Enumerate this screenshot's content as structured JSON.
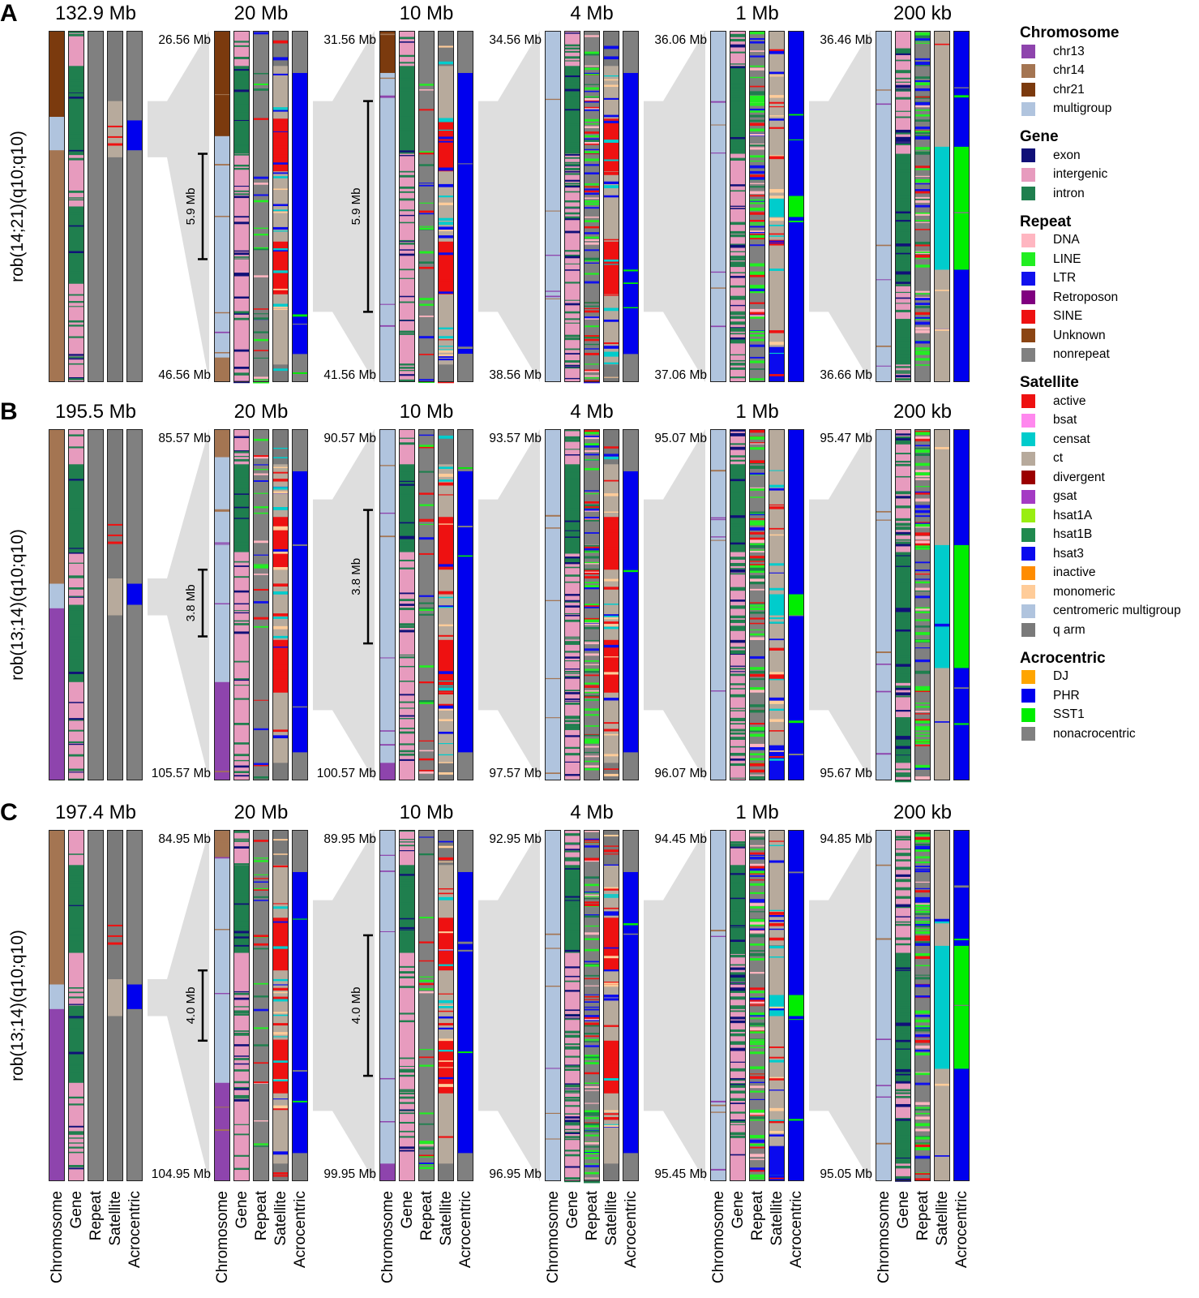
{
  "colors": {
    "chr13": "#8e44ad",
    "chr14": "#a47552",
    "chr21": "#7b3a0e",
    "multigroup": "#b0c4de",
    "exon": "#101078",
    "intergenic": "#e79bbe",
    "intron": "#1f7f4e",
    "DNA": "#ffb6c1",
    "LINE": "#22ee22",
    "LTR": "#1010ee",
    "Retroposon": "#800080",
    "SINE": "#ee1111",
    "Unknown": "#8b4513",
    "nonrepeat": "#808080",
    "active": "#ee1111",
    "bsat": "#ff88ee",
    "censat": "#00cccc",
    "ct": "#b7aa9c",
    "divergent": "#9b0000",
    "gsat": "#a43ac4",
    "hsat1A": "#99ee11",
    "hsat1B": "#1f8a4e",
    "hsat3": "#0a0aee",
    "inactive": "#ff8c00",
    "monomeric": "#ffcc99",
    "centromeric multigroup": "#b0c4de",
    "q arm": "#7a7a7a",
    "DJ": "#ffa500",
    "PHR": "#0000ee",
    "SST1": "#00ee00",
    "nonacrocentric": "#808080"
  },
  "legend": [
    {
      "title": "Chromosome",
      "items": [
        "chr13",
        "chr14",
        "chr21",
        "multigroup"
      ]
    },
    {
      "title": "Gene",
      "items": [
        "exon",
        "intergenic",
        "intron"
      ]
    },
    {
      "title": "Repeat",
      "items": [
        "DNA",
        "LINE",
        "LTR",
        "Retroposon",
        "SINE",
        "Unknown",
        "nonrepeat"
      ]
    },
    {
      "title": "Satellite",
      "items": [
        "active",
        "bsat",
        "censat",
        "ct",
        "divergent",
        "gsat",
        "hsat1A",
        "hsat1B",
        "hsat3",
        "inactive",
        "monomeric",
        "centromeric multigroup",
        "q arm"
      ]
    },
    {
      "title": "Acrocentric",
      "items": [
        "DJ",
        "PHR",
        "SST1",
        "nonacrocentric"
      ]
    }
  ],
  "track_labels": [
    "Chromosome",
    "Gene",
    "Repeat",
    "Satellite",
    "Acrocentric"
  ],
  "panels": [
    {
      "letter": "A",
      "label": "rob(14;21)(q10;q10)",
      "views": [
        {
          "title": "132.9 Mb"
        },
        {
          "title": "20 Mb",
          "top": "26.56 Mb",
          "bottom": "46.56 Mb",
          "scale": "5.9 Mb",
          "sfrac": [
            0.35,
            0.65
          ]
        },
        {
          "title": "10 Mb",
          "top": "31.56 Mb",
          "bottom": "41.56 Mb",
          "scale": "5.9 Mb",
          "sfrac": [
            0.2,
            0.8
          ]
        },
        {
          "title": "4 Mb",
          "top": "34.56 Mb",
          "bottom": "38.56 Mb"
        },
        {
          "title": "1 Mb",
          "top": "36.06 Mb",
          "bottom": "37.06 Mb"
        },
        {
          "title": "200 kb",
          "top": "36.46 Mb",
          "bottom": "36.66 Mb"
        }
      ]
    },
    {
      "letter": "B",
      "label": "rob(13;14)(q10;q10)",
      "views": [
        {
          "title": "195.5 Mb"
        },
        {
          "title": "20 Mb",
          "top": "85.57 Mb",
          "bottom": "105.57 Mb",
          "scale": "3.8 Mb",
          "sfrac": [
            0.4,
            0.59
          ]
        },
        {
          "title": "10 Mb",
          "top": "90.57 Mb",
          "bottom": "100.57 Mb",
          "scale": "3.8 Mb",
          "sfrac": [
            0.23,
            0.61
          ]
        },
        {
          "title": "4 Mb",
          "top": "93.57 Mb",
          "bottom": "97.57 Mb"
        },
        {
          "title": "1 Mb",
          "top": "95.07 Mb",
          "bottom": "96.07 Mb"
        },
        {
          "title": "200 kb",
          "top": "95.47 Mb",
          "bottom": "95.67 Mb"
        }
      ]
    },
    {
      "letter": "C",
      "label": "rob(13;14)(q10;q10)",
      "views": [
        {
          "title": "197.4 Mb"
        },
        {
          "title": "20 Mb",
          "top": "84.95 Mb",
          "bottom": "104.95 Mb",
          "scale": "4.0 Mb",
          "sfrac": [
            0.4,
            0.6
          ]
        },
        {
          "title": "10 Mb",
          "top": "89.95 Mb",
          "bottom": "99.95 Mb",
          "scale": "4.0 Mb",
          "sfrac": [
            0.3,
            0.7
          ]
        },
        {
          "title": "4 Mb",
          "top": "92.95 Mb",
          "bottom": "96.95 Mb"
        },
        {
          "title": "1 Mb",
          "top": "94.45 Mb",
          "bottom": "95.45 Mb"
        },
        {
          "title": "200 kb",
          "top": "94.85 Mb",
          "bottom": "95.05 Mb"
        }
      ]
    }
  ]
}
